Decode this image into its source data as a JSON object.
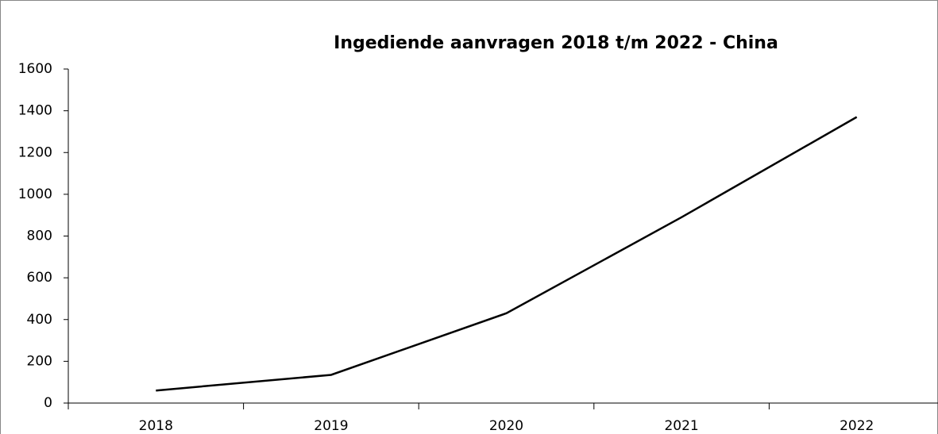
{
  "chart_data": {
    "type": "line",
    "title": "Ingediende aanvragen 2018 t/m 2022 - China",
    "categories": [
      "2018",
      "2019",
      "2020",
      "2021",
      "2022"
    ],
    "values": [
      60,
      135,
      430,
      890,
      1370
    ],
    "color": "#000000",
    "ylim": [
      0,
      1600
    ],
    "yticks": [
      0,
      200,
      400,
      600,
      800,
      1000,
      1200,
      1400,
      1600
    ],
    "grid": false
  }
}
